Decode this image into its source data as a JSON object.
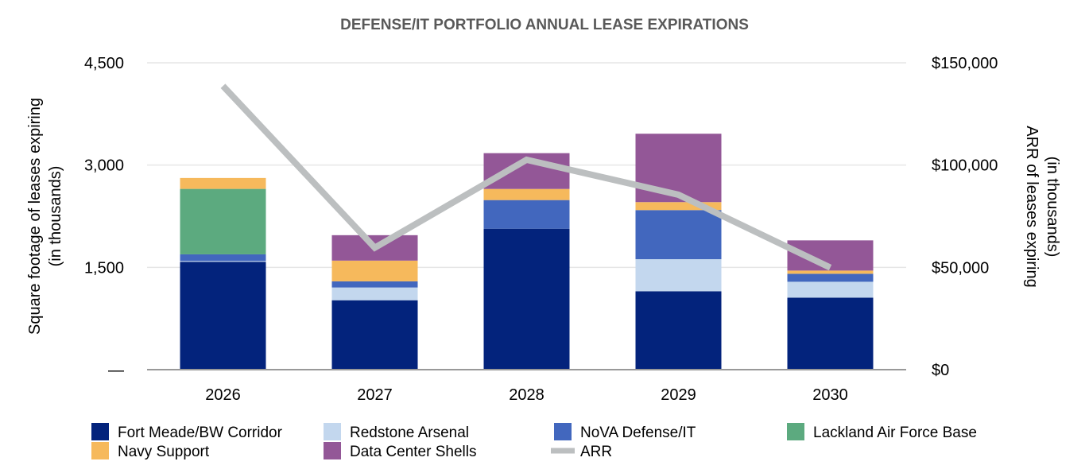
{
  "chart_data": {
    "type": "bar",
    "stacked": true,
    "title": "DEFENSE/IT PORTFOLIO ANNUAL LEASE EXPIRATIONS",
    "ylabel": [
      "Square footage of leases expiring",
      "(in thousands)"
    ],
    "y2label": [
      "ARR of leases expiring",
      "(in thousands)"
    ],
    "ylim": [
      0,
      4500
    ],
    "y2lim": [
      0,
      150000
    ],
    "yticks": [
      "—",
      "1,500",
      "3,000",
      "4,500"
    ],
    "y2ticks": [
      "$0",
      "$50,000",
      "$100,000",
      "$150,000"
    ],
    "categories": [
      "2026",
      "2027",
      "2028",
      "2029",
      "2030"
    ],
    "grid": true,
    "legend_position": "bottom",
    "series": [
      {
        "name": "Fort Meade/BW Corridor",
        "color": "#03237c",
        "values": [
          1582,
          1018,
          2067,
          1150,
          1056
        ]
      },
      {
        "name": "Redstone Arsenal",
        "color": "#c3d7ee",
        "values": [
          12,
          187,
          0,
          470,
          233
        ]
      },
      {
        "name": "NoVA Defense/IT",
        "color": "#4267be",
        "values": [
          97,
          90,
          420,
          720,
          117
        ]
      },
      {
        "name": "Lackland Air Force Base",
        "color": "#5caa7f",
        "values": [
          960,
          0,
          0,
          0,
          0
        ]
      },
      {
        "name": "Navy Support",
        "color": "#f6b95c",
        "values": [
          160,
          304,
          163,
          117,
          47
        ]
      },
      {
        "name": "Data Center Shells",
        "color": "#935797",
        "values": [
          0,
          373,
          525,
          1003,
          443
        ]
      }
    ],
    "line_series": {
      "name": "ARR",
      "color": "#bcbfc0",
      "axis": "right",
      "values": [
        138700,
        59600,
        102600,
        85500,
        49900
      ]
    }
  }
}
